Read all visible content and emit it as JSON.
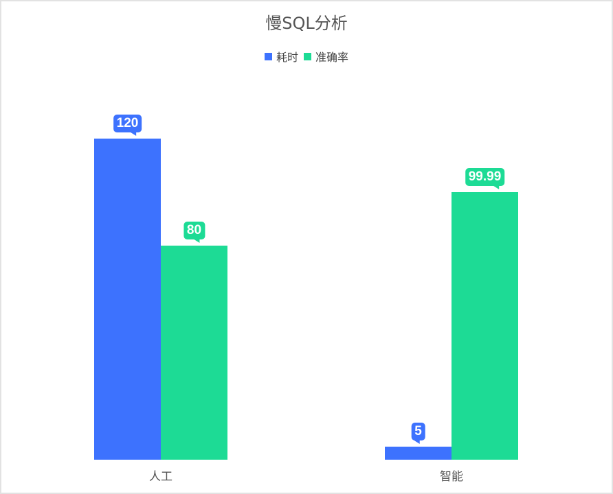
{
  "chart_data": {
    "type": "bar",
    "title": "慢SQL分析",
    "categories": [
      "人工",
      "智能"
    ],
    "series": [
      {
        "name": "耗时",
        "values": [
          120,
          5
        ],
        "color": "#3d72fe"
      },
      {
        "name": "准确率",
        "values": [
          80,
          99.99
        ],
        "color": "#1ddb95"
      }
    ],
    "value_labels": [
      [
        "120",
        "5"
      ],
      [
        "80",
        "99.99"
      ]
    ],
    "xlabel": "",
    "ylabel": "",
    "ylim": [
      0,
      150
    ],
    "grid": false,
    "legend_position": "top"
  },
  "title": "慢SQL分析",
  "legend": [
    {
      "label": "耗时",
      "color": "#3d72fe"
    },
    {
      "label": "准确率",
      "color": "#1ddb95"
    }
  ],
  "x_labels": [
    "人工",
    "智能"
  ],
  "bar_labels": {
    "g0s0": "120",
    "g0s1": "80",
    "g1s0": "5",
    "g1s1": "99.99"
  }
}
